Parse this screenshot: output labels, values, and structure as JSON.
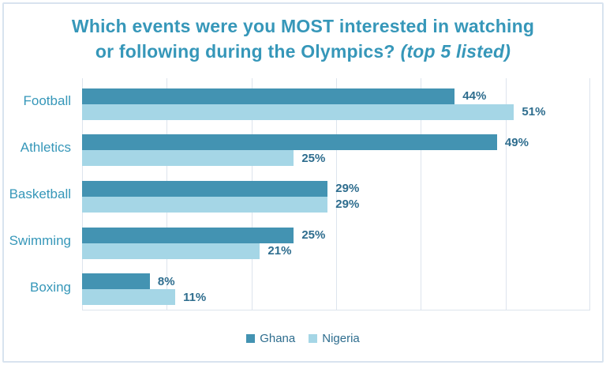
{
  "title": {
    "line1": "Which events were you MOST interested in watching",
    "line2_text": "or following during the Olympics?",
    "line2_italic": "(top 5 listed)"
  },
  "colors": {
    "title_text": "#3697b9",
    "category_text": "#3697b9",
    "data_label_text": "#2e6d8e",
    "ghana_bar": "#4393b2",
    "nigeria_bar": "#a5d6e6",
    "gridline": "#dde4ed",
    "page_border": "#d8e3ef"
  },
  "chart_data": {
    "type": "bar",
    "orientation": "horizontal",
    "categories": [
      "Football",
      "Athletics",
      "Basketball",
      "Swimming",
      "Boxing"
    ],
    "series": [
      {
        "name": "Ghana",
        "color": "#4393b2",
        "values": [
          44,
          49,
          29,
          25,
          8
        ]
      },
      {
        "name": "Nigeria",
        "color": "#a5d6e6",
        "values": [
          51,
          25,
          29,
          21,
          11
        ]
      }
    ],
    "value_suffix": "%",
    "data_labels": [
      "44%",
      "51%",
      "49%",
      "25%",
      "29%",
      "29%",
      "25%",
      "21%",
      "8%",
      "11%"
    ],
    "xlim": [
      0,
      60
    ],
    "gridline_step": 10,
    "grid": "on",
    "xlabel": "",
    "ylabel": "",
    "legend_position": "bottom",
    "legend_entries": [
      "Ghana",
      "Nigeria"
    ]
  }
}
